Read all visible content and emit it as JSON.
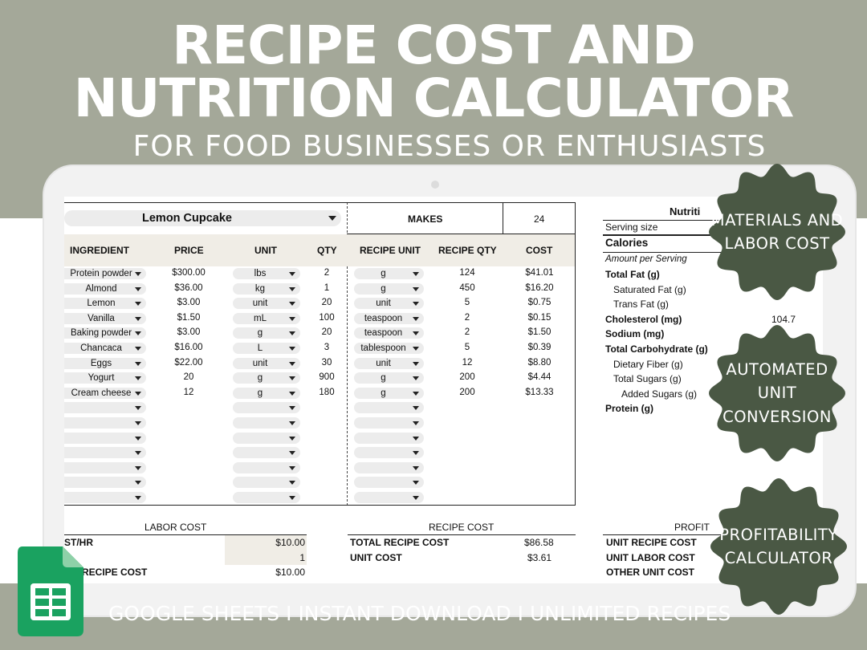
{
  "heading": {
    "line1": "RECIPE COST AND",
    "line2": "NUTRITION CALCULATOR",
    "subtitle": "FOR FOOD BUSINESSES OR ENTHUSIASTS"
  },
  "recipe": {
    "name": "Lemon Cupcake",
    "makes_label": "MAKES",
    "makes_value": "24"
  },
  "ingredients_table": {
    "headers": [
      "INGREDIENT",
      "PRICE",
      "UNIT",
      "QTY"
    ],
    "rows": [
      {
        "ingredient": "Protein powder",
        "price": "$300.00",
        "unit": "lbs",
        "qty": "2"
      },
      {
        "ingredient": "Almond",
        "price": "$36.00",
        "unit": "kg",
        "qty": "1"
      },
      {
        "ingredient": "Lemon",
        "price": "$3.00",
        "unit": "unit",
        "qty": "20"
      },
      {
        "ingredient": "Vanilla",
        "price": "$1.50",
        "unit": "mL",
        "qty": "100"
      },
      {
        "ingredient": "Baking powder",
        "price": "$3.00",
        "unit": "g",
        "qty": "20"
      },
      {
        "ingredient": "Chancaca",
        "price": "$16.00",
        "unit": "L",
        "qty": "3"
      },
      {
        "ingredient": "Eggs",
        "price": "$22.00",
        "unit": "unit",
        "qty": "30"
      },
      {
        "ingredient": "Yogurt",
        "price": "20",
        "unit": "g",
        "qty": "900"
      },
      {
        "ingredient": "Cream cheese",
        "price": "12",
        "unit": "g",
        "qty": "180"
      }
    ]
  },
  "recipe_table": {
    "headers": [
      "RECIPE UNIT",
      "RECIPE QTY",
      "COST"
    ],
    "rows": [
      {
        "unit": "g",
        "qty": "124",
        "cost": "$41.01"
      },
      {
        "unit": "g",
        "qty": "450",
        "cost": "$16.20"
      },
      {
        "unit": "unit",
        "qty": "5",
        "cost": "$0.75"
      },
      {
        "unit": "teaspoon",
        "qty": "2",
        "cost": "$0.15"
      },
      {
        "unit": "teaspoon",
        "qty": "2",
        "cost": "$1.50"
      },
      {
        "unit": "tablespoon",
        "qty": "5",
        "cost": "$0.39"
      },
      {
        "unit": "unit",
        "qty": "12",
        "cost": "$8.80"
      },
      {
        "unit": "g",
        "qty": "200",
        "cost": "$4.44"
      },
      {
        "unit": "g",
        "qty": "200",
        "cost": "$13.33"
      }
    ]
  },
  "nutrition": {
    "title": "Nutriti",
    "serving_size": "Serving size",
    "calories": "Calories",
    "amount_per_serving": "Amount per Serving",
    "items": [
      {
        "label": "Total Fat (g)",
        "bold": true,
        "indent": 0
      },
      {
        "label": "Saturated Fat (g)",
        "bold": false,
        "indent": 1
      },
      {
        "label": "Trans Fat (g)",
        "bold": false,
        "indent": 1
      },
      {
        "label": "Cholesterol (mg)",
        "bold": true,
        "indent": 0
      },
      {
        "label": "Sodium (mg)",
        "bold": true,
        "indent": 0
      },
      {
        "label": "Total Carbohydrate (g)",
        "bold": true,
        "indent": 0
      },
      {
        "label": "Dietary Fiber (g)",
        "bold": false,
        "indent": 1
      },
      {
        "label": "Total Sugars (g)",
        "bold": false,
        "indent": 1
      },
      {
        "label": "Added Sugars (g)",
        "bold": false,
        "indent": 2
      },
      {
        "label": "Protein (g)",
        "bold": true,
        "indent": 0
      }
    ],
    "cholesterol_value": "104.7"
  },
  "labor_cost": {
    "title": "LABOR COST",
    "row1_label": "ST/HR",
    "row1_value": "$10.00",
    "row2_value": "1",
    "row3_label": "RECIPE COST",
    "row3_value": "$10.00"
  },
  "recipe_cost": {
    "title": "RECIPE COST",
    "total_label": "TOTAL RECIPE COST",
    "total_value": "$86.58",
    "unit_label": "UNIT COST",
    "unit_value": "$3.61"
  },
  "profit": {
    "title": "PROFIT",
    "rows": [
      "UNIT RECIPE COST",
      "UNIT LABOR COST",
      "OTHER UNIT COST"
    ]
  },
  "badges": [
    {
      "text": "MATERIALS AND LABOR COST"
    },
    {
      "text": "AUTOMATED UNIT CONVERSION"
    },
    {
      "text": "PROFITABILITY CALCULATOR"
    }
  ],
  "footer": "GOOGLE SHEETS I INSTANT DOWNLOAD I UNLIMITED RECIPES",
  "colors": {
    "band": "#a4a899",
    "badge": "#4a5844",
    "sheets_green": "#0f9d58"
  }
}
